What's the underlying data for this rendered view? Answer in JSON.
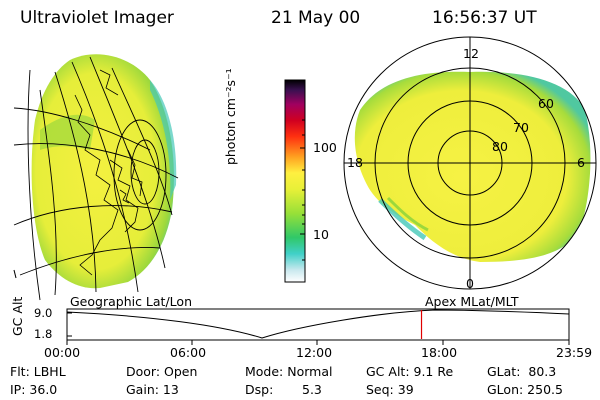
{
  "header": {
    "instrument": "Ultraviolet Imager",
    "date": "21 May 00",
    "time": "16:56:37 UT"
  },
  "colorbar": {
    "unit_label": "photon cm⁻²s⁻¹",
    "ticks": [
      "100",
      "10"
    ]
  },
  "polar": {
    "mlt_labels": [
      "12",
      "18",
      "6",
      "0"
    ],
    "lat_labels": [
      "60",
      "70",
      "80"
    ]
  },
  "coords": {
    "left": "Geographic Lat/Lon",
    "right": "Apex MLat/MLT"
  },
  "timeline": {
    "ylabel": "GC Alt",
    "ymax": "9.0",
    "ymin": "1.8",
    "times": [
      "00:00",
      "06:00",
      "12:00",
      "18:00",
      "23:59"
    ],
    "current_fraction": 0.7062
  },
  "status": {
    "filter": "Flt: LBHL",
    "door": "Door: Open",
    "mode": "Mode: Normal",
    "gc_alt": "GC Alt: 9.1 Re",
    "glat": "GLat:  80.3",
    "ip": "IP: 36.0",
    "gain": "Gain: 13",
    "dsp_label": "Dsp:",
    "dsp_value": "5.3",
    "seq": "Seq: 39",
    "glon": "GLon: 250.5"
  },
  "colors": {
    "aurora_main": "#f2ee38",
    "aurora_green": "#8fd83a",
    "aurora_cyan": "#35d0c8",
    "marker": "#e00000"
  }
}
